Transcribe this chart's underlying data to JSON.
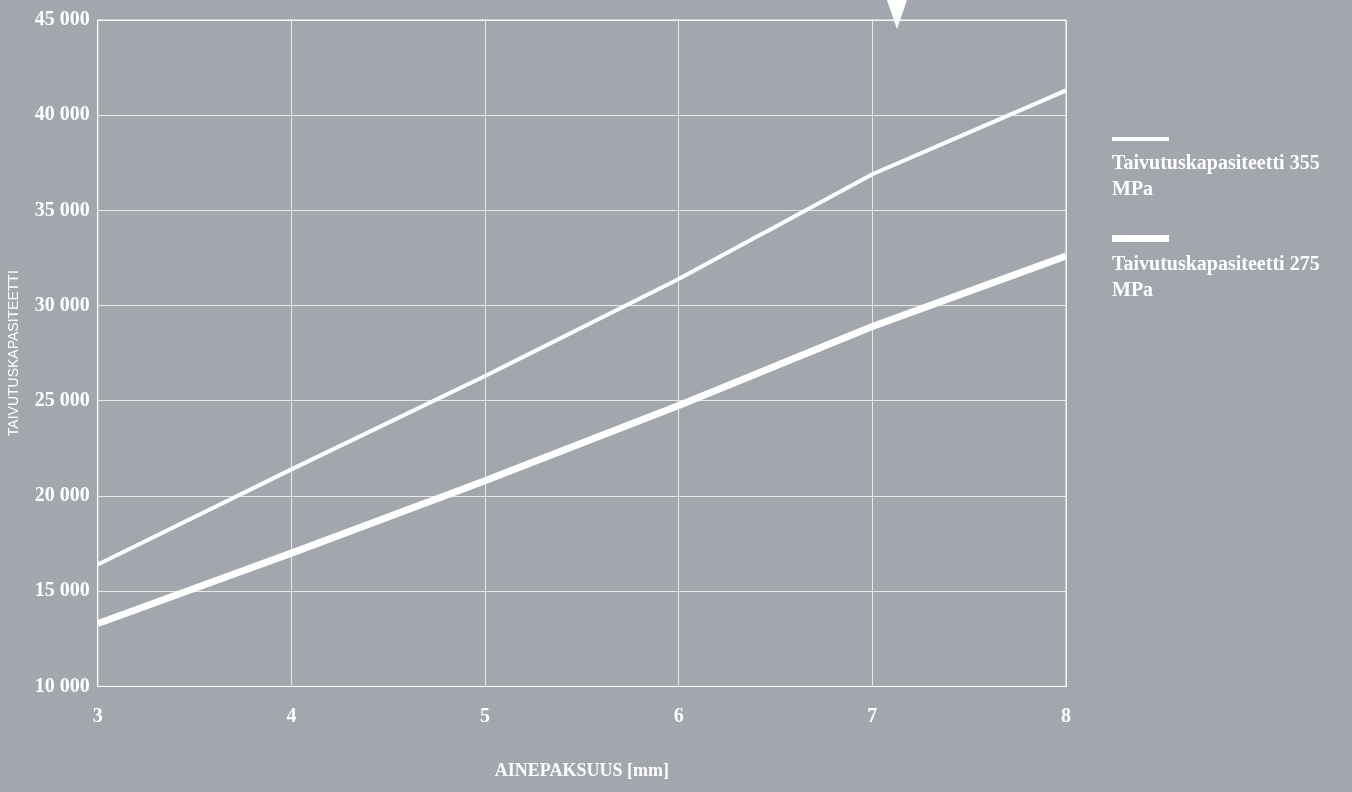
{
  "chart_data": {
    "type": "line",
    "xlabel": "AINEPAKSUUS [mm]",
    "ylabel": "TAIVUTUSKAPASITEETTI",
    "x": [
      3,
      4,
      5,
      6,
      7,
      8
    ],
    "series": [
      {
        "name": "Taivutuskapasiteetti 355 MPa",
        "color": "#ffffff",
        "values": [
          16400,
          21400,
          26300,
          31400,
          36900,
          41300
        ]
      },
      {
        "name": "Taivutuskapasiteetti 275 MPa",
        "color": "#ffffff",
        "values": [
          13300,
          17000,
          20800,
          24750,
          28900,
          32600
        ]
      }
    ],
    "xlim": [
      3,
      8
    ],
    "xticks": [
      3,
      4,
      5,
      6,
      7,
      8
    ],
    "ylim": [
      10000,
      45000
    ],
    "yticks": [
      {
        "value": 10000,
        "label": "10 000"
      },
      {
        "value": 15000,
        "label": "15 000"
      },
      {
        "value": 20000,
        "label": "20 000"
      },
      {
        "value": 25000,
        "label": "25 000"
      },
      {
        "value": 30000,
        "label": "30 000"
      },
      {
        "value": 35000,
        "label": "35 000"
      },
      {
        "value": 40000,
        "label": "40 000"
      },
      {
        "value": 45000,
        "label": "45 000"
      }
    ],
    "grid": true,
    "legend": "right",
    "marker": "none",
    "line_style": "solid"
  }
}
